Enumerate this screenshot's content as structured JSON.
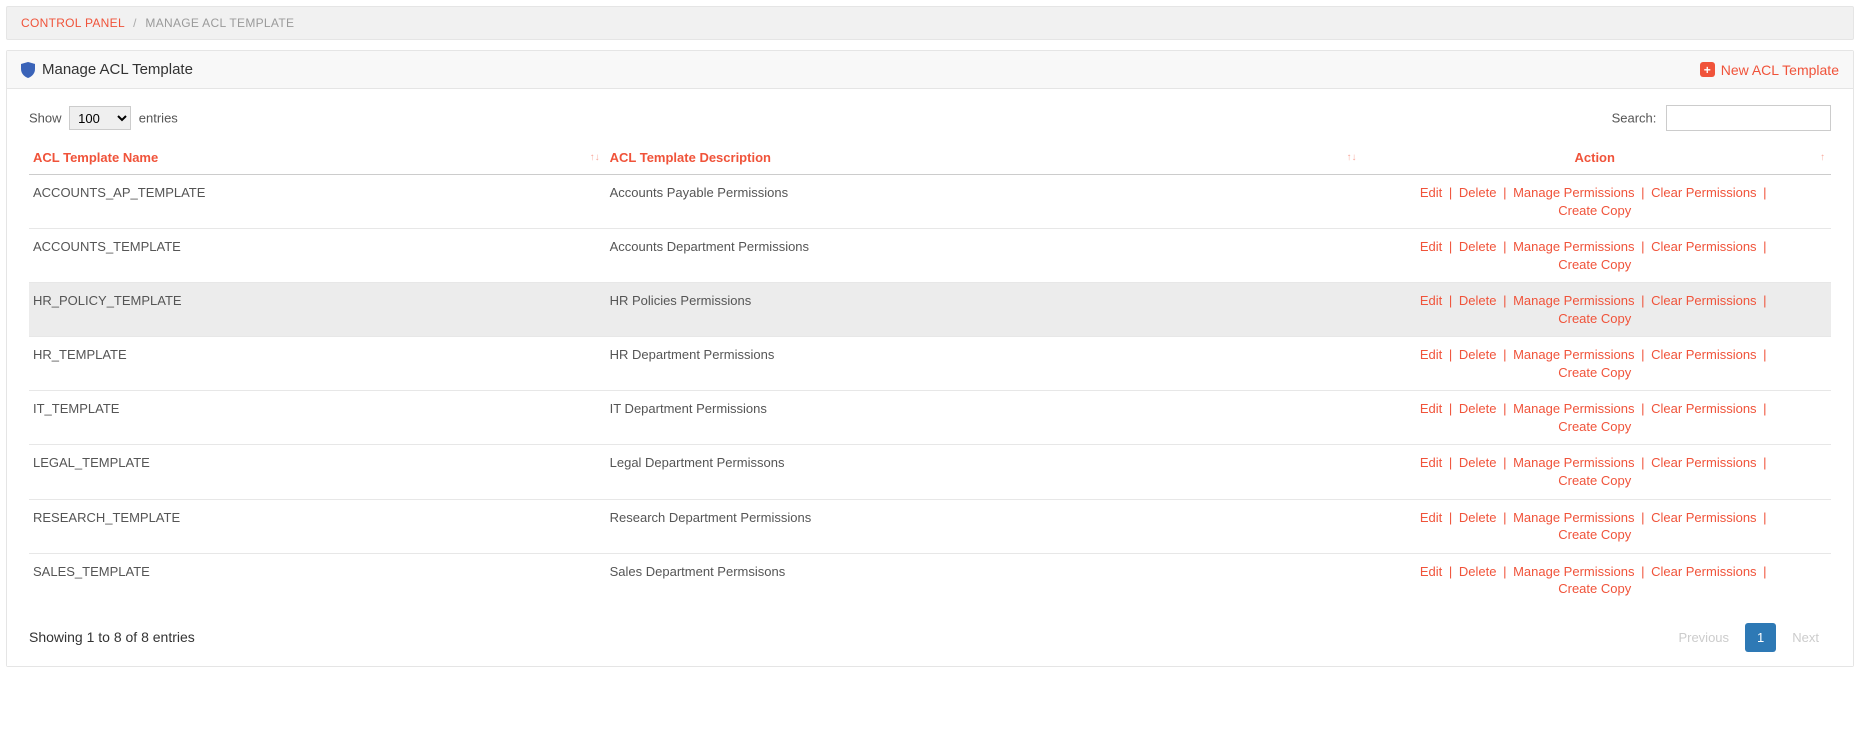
{
  "colors": {
    "accent": "#f0533a",
    "shield_fill": "#3a63b8",
    "pagination_active_bg": "#2e79b5",
    "pagination_disabled": "#cccccc",
    "border": "#e5e5e5",
    "row_highlight": "#ececec"
  },
  "breadcrumb": {
    "link_label": "CONTROL PANEL",
    "sep": "/",
    "current": "MANAGE ACL TEMPLATE"
  },
  "header": {
    "title": "Manage ACL Template",
    "new_button": "New ACL Template"
  },
  "toolbar": {
    "show_prefix": "Show",
    "show_suffix": "entries",
    "entries_value": "100",
    "search_label": "Search:"
  },
  "columns": {
    "name": "ACL Template Name",
    "description": "ACL Template Description",
    "action": "Action"
  },
  "action_labels": {
    "edit": "Edit",
    "delete": "Delete",
    "manage": "Manage Permissions",
    "clear": "Clear Permissions",
    "copy": "Create Copy",
    "sep": "|"
  },
  "rows": [
    {
      "name": "ACCOUNTS_AP_TEMPLATE",
      "description": "Accounts Payable Permissions",
      "highlight": false
    },
    {
      "name": "ACCOUNTS_TEMPLATE",
      "description": "Accounts Department Permissions",
      "highlight": false
    },
    {
      "name": "HR_POLICY_TEMPLATE",
      "description": "HR Policies Permissions",
      "highlight": true
    },
    {
      "name": "HR_TEMPLATE",
      "description": "HR Department Permissions",
      "highlight": false
    },
    {
      "name": "IT_TEMPLATE",
      "description": "IT Department Permissions",
      "highlight": false
    },
    {
      "name": "LEGAL_TEMPLATE",
      "description": "Legal Department Permissons",
      "highlight": false
    },
    {
      "name": "RESEARCH_TEMPLATE",
      "description": "Research Department Permissions",
      "highlight": false
    },
    {
      "name": "SALES_TEMPLATE",
      "description": "Sales Department Permsisons",
      "highlight": false
    }
  ],
  "footer": {
    "info": "Showing 1 to 8 of 8 entries",
    "prev": "Previous",
    "next": "Next",
    "page": "1"
  }
}
